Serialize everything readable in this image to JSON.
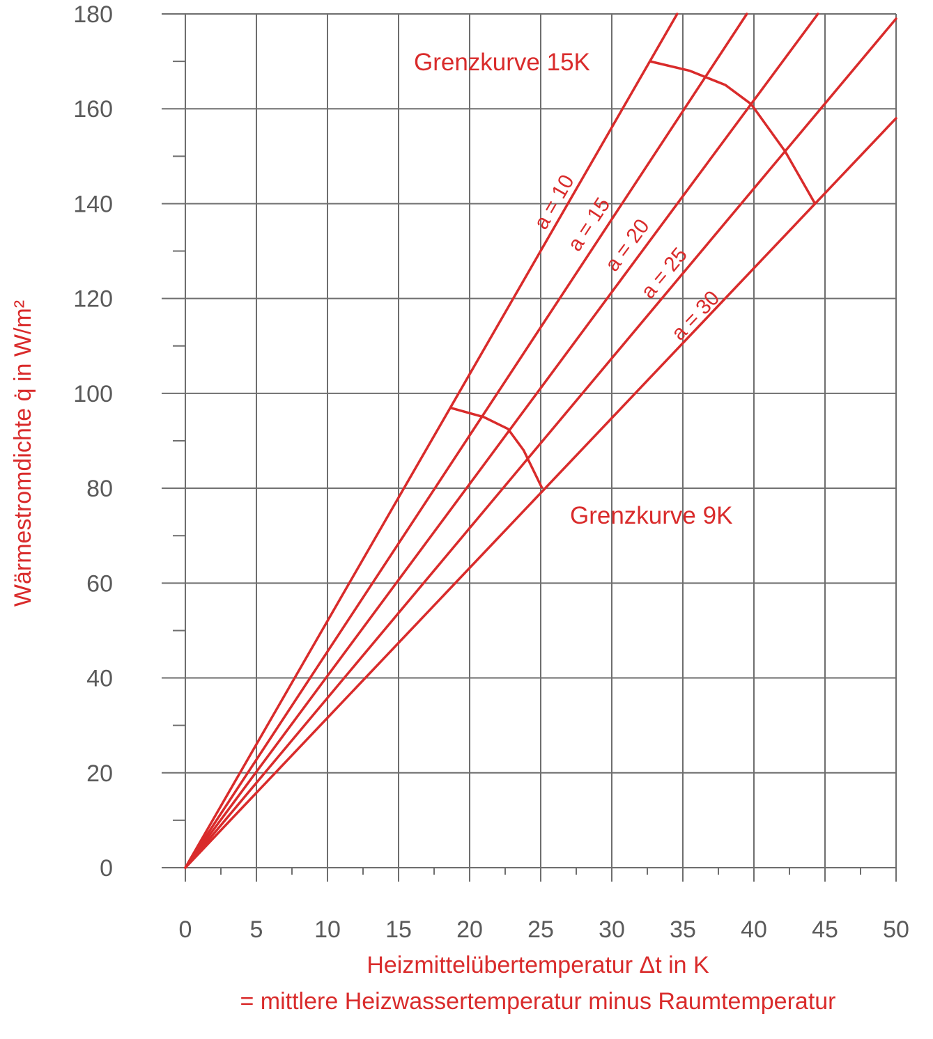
{
  "colors": {
    "series": "#d92b2b",
    "grid": "#6e6e6e",
    "tick_text": "#5a5a5a"
  },
  "chart_data": {
    "type": "line",
    "xlabel": "Heizmittelübertemperatur Δt in K",
    "xlabel_line2": "= mittlere Heizwassertemperatur minus Raumtemperatur",
    "ylabel": "Wärmestromdichte q̇ in W/m²",
    "xlim": [
      0,
      50
    ],
    "ylim": [
      0,
      180
    ],
    "x_ticks": [
      0,
      5,
      10,
      15,
      20,
      25,
      30,
      35,
      40,
      45,
      50
    ],
    "y_ticks": [
      0,
      20,
      40,
      60,
      80,
      100,
      120,
      140,
      160,
      180
    ],
    "grid": true,
    "series": [
      {
        "name": "a = 10",
        "x": [
          0,
          34.6
        ],
        "y": [
          0,
          180
        ]
      },
      {
        "name": "a = 15",
        "x": [
          0,
          39.5
        ],
        "y": [
          0,
          180
        ]
      },
      {
        "name": "a = 20",
        "x": [
          0,
          44.5
        ],
        "y": [
          0,
          180
        ]
      },
      {
        "name": "a = 25",
        "x": [
          0,
          50
        ],
        "y": [
          0,
          179
        ]
      },
      {
        "name": "a = 30",
        "x": [
          0,
          50
        ],
        "y": [
          0,
          158
        ]
      }
    ],
    "limit_curves": [
      {
        "label": "Grenzkurve 15K",
        "x": [
          32.7,
          35.5,
          38.0,
          39.8,
          42.2,
          44.3
        ],
        "y": [
          170,
          168,
          165,
          161,
          151,
          140
        ]
      },
      {
        "label": "Grenzkurve 9K",
        "x": [
          18.6,
          21.0,
          22.7,
          23.8,
          25.1
        ],
        "y": [
          97,
          95,
          92.5,
          88,
          80
        ]
      }
    ]
  }
}
